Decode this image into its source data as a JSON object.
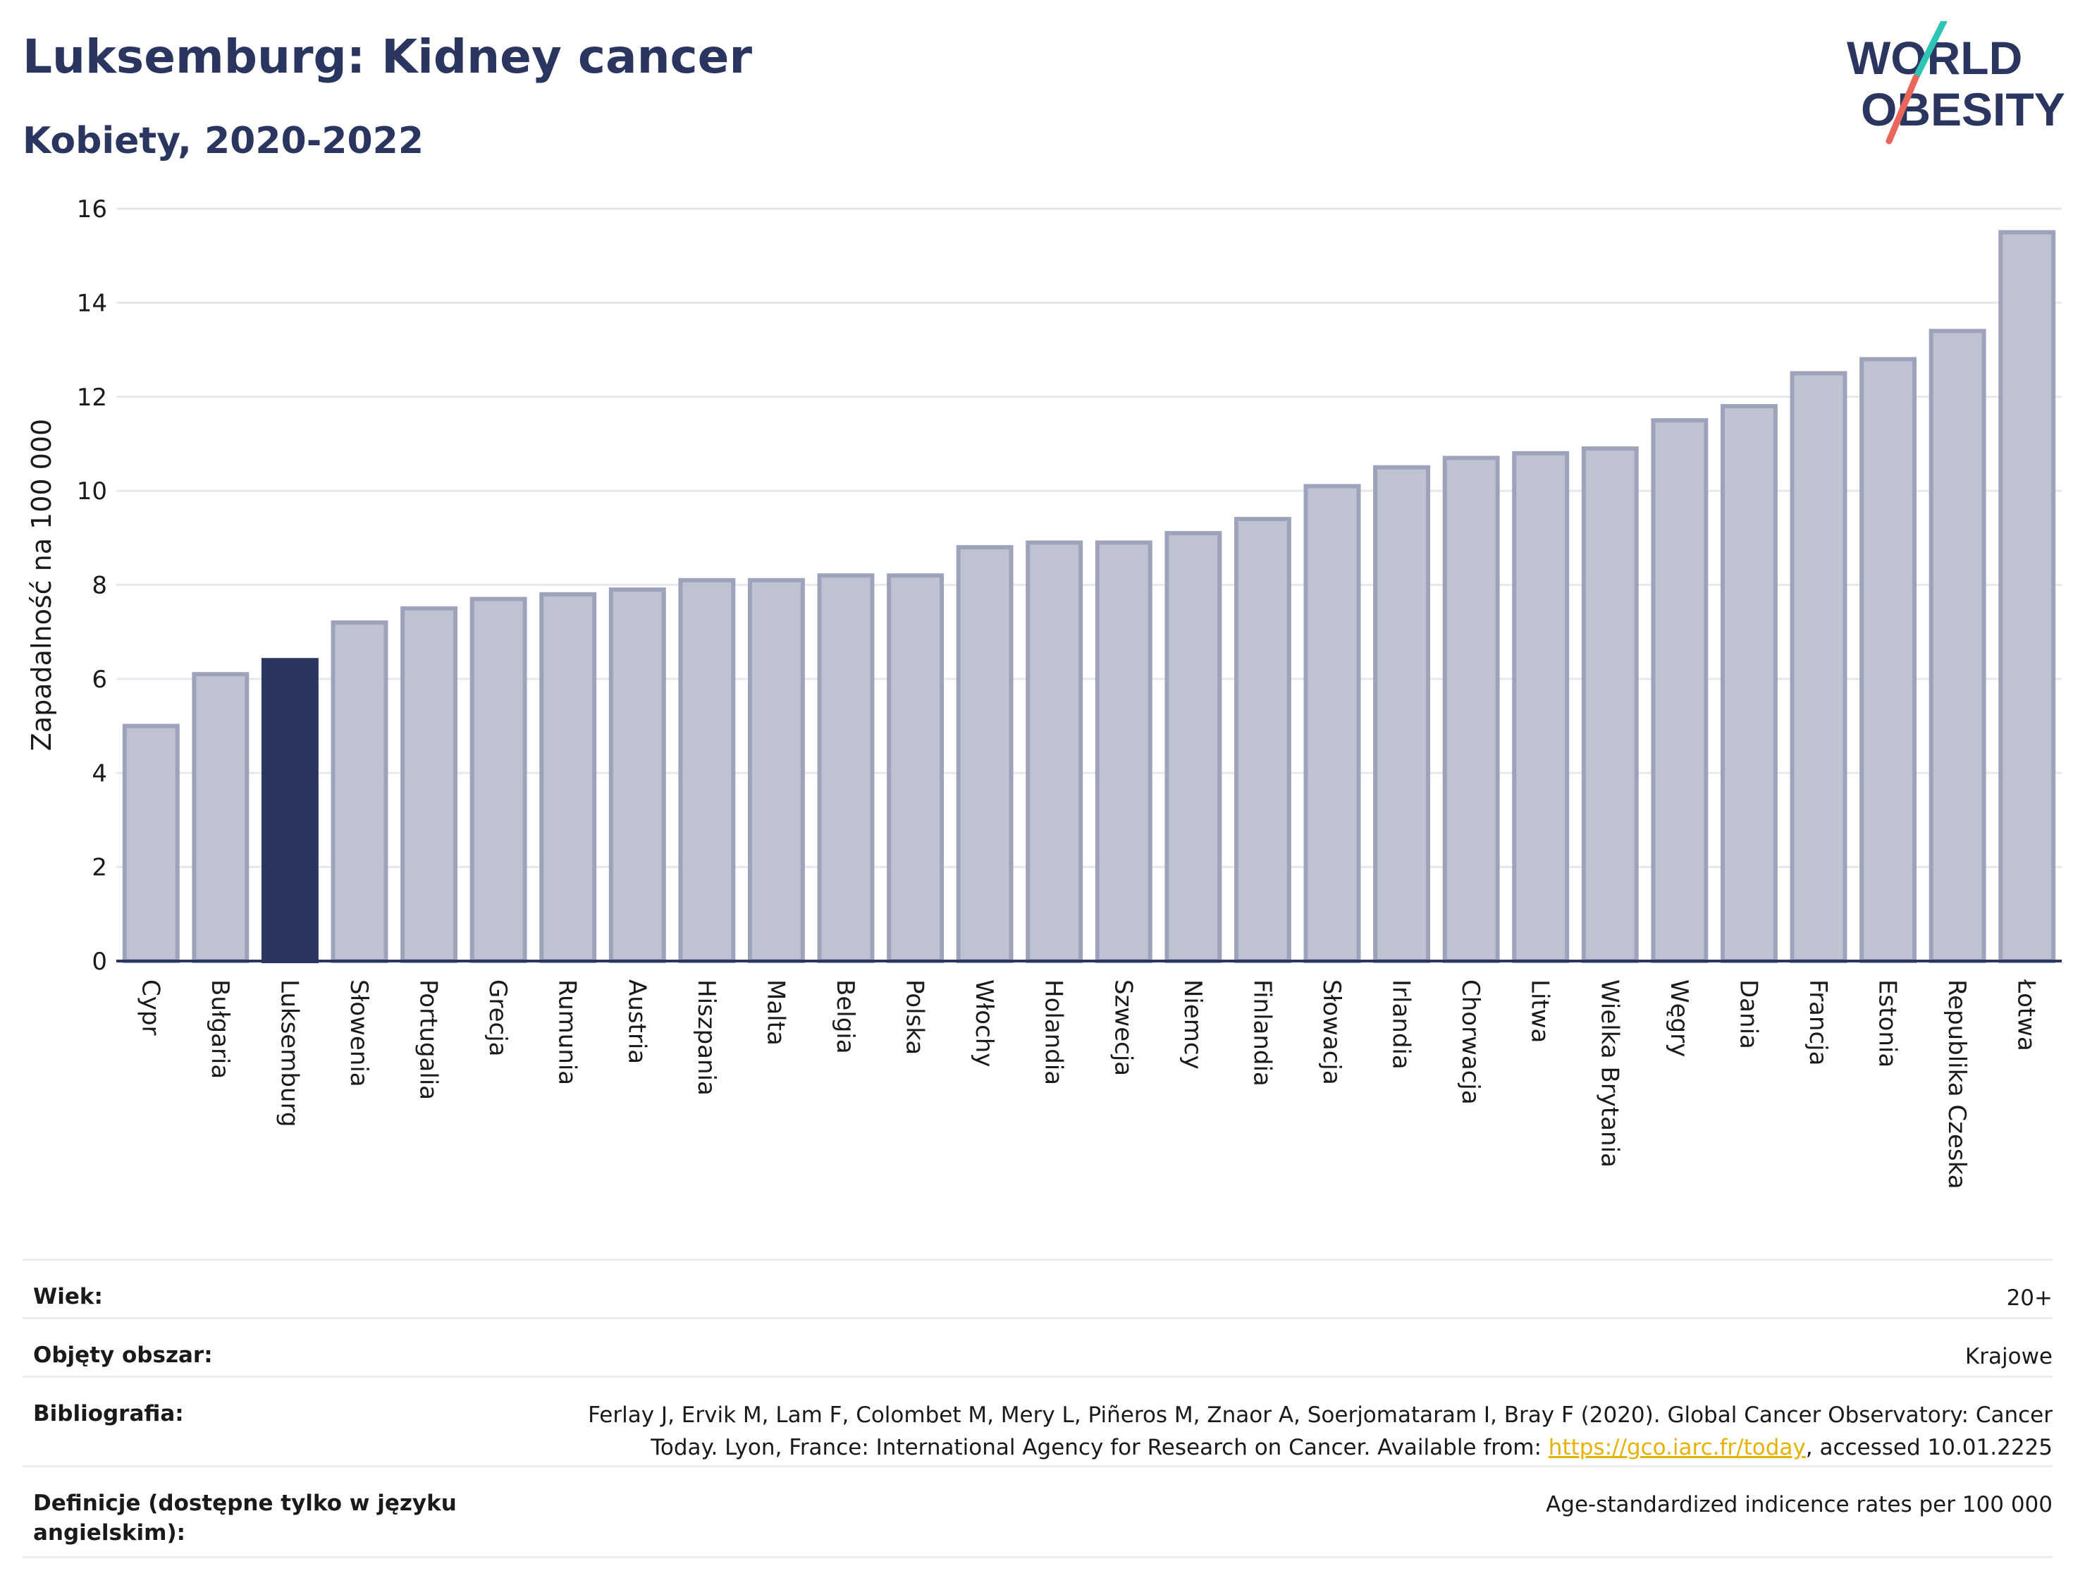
{
  "header": {
    "title": "Luksemburg: Kidney cancer",
    "subtitle": "Kobiety, 2020-2022"
  },
  "logo": {
    "line1": "WORLD",
    "line2": "OBESITY",
    "accent_colors": [
      "#2ec4b6",
      "#e8675a"
    ]
  },
  "chart_data": {
    "type": "bar",
    "ylabel": "Zapadalność na 100 000",
    "ylim": [
      0,
      16
    ],
    "yticks": [
      0,
      2,
      4,
      6,
      8,
      10,
      12,
      14,
      16
    ],
    "grid": true,
    "highlight": "Luksemburg",
    "colors": {
      "bar": "#bfc2d0",
      "bar_stroke": "#9ea3bb",
      "highlight": "#2b3660"
    },
    "categories": [
      "Cypr",
      "Bułgaria",
      "Luksemburg",
      "Słowenia",
      "Portugalia",
      "Grecja",
      "Rumunia",
      "Austria",
      "Hiszpania",
      "Malta",
      "Belgia",
      "Polska",
      "Włochy",
      "Holandia",
      "Szwecja",
      "Niemcy",
      "Finlandia",
      "Słowacja",
      "Irlandia",
      "Chorwacja",
      "Litwa",
      "Wielka Brytania",
      "Węgry",
      "Dania",
      "Francja",
      "Estonia",
      "Republika Czeska",
      "Łotwa"
    ],
    "values": [
      5.0,
      6.1,
      6.4,
      7.2,
      7.5,
      7.7,
      7.8,
      7.9,
      8.1,
      8.1,
      8.2,
      8.2,
      8.8,
      8.9,
      8.9,
      9.1,
      9.4,
      10.1,
      10.5,
      10.7,
      10.8,
      10.9,
      11.5,
      11.8,
      12.5,
      12.8,
      13.4,
      15.5
    ]
  },
  "info": [
    {
      "label": "Wiek:",
      "value": "20+"
    },
    {
      "label": "Objęty obszar:",
      "value": "Krajowe"
    },
    {
      "label": "Bibliografia:",
      "value_line1": "Ferlay J, Ervik M, Lam F, Colombet M, Mery L, Piñeros M, Znaor A, Soerjomataram I, Bray F (2020). Global Cancer Observatory: Cancer",
      "value_line2_pre": "Today. Lyon, France: International Agency for Research on Cancer. Available from: ",
      "value_link": "https://gco.iarc.fr/today",
      "value_line2_post": ", accessed 10.01.2225"
    },
    {
      "label": "Definicje (dostępne tylko w języku angielskim):",
      "value": "Age-standardized indicence rates per 100 000"
    }
  ]
}
